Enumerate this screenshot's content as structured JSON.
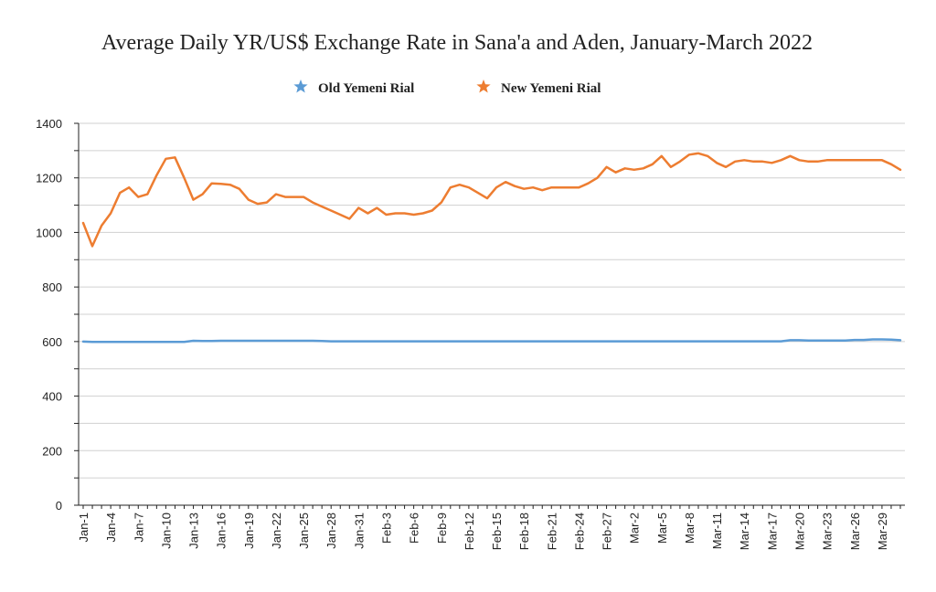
{
  "chart_data": {
    "type": "line",
    "title": "Average Daily YR/US$ Exchange Rate in Sana'a and Aden, January-March 2022",
    "xlabel": "",
    "ylabel": "",
    "ylim": [
      0,
      1400
    ],
    "yticks": [
      0,
      200,
      400,
      600,
      800,
      1000,
      1200,
      1400
    ],
    "grid": true,
    "legend_position": "top",
    "x": [
      "Jan-1",
      "Jan-2",
      "Jan-3",
      "Jan-4",
      "Jan-5",
      "Jan-6",
      "Jan-7",
      "Jan-8",
      "Jan-9",
      "Jan-10",
      "Jan-11",
      "Jan-12",
      "Jan-13",
      "Jan-14",
      "Jan-15",
      "Jan-16",
      "Jan-17",
      "Jan-18",
      "Jan-19",
      "Jan-20",
      "Jan-21",
      "Jan-22",
      "Jan-23",
      "Jan-24",
      "Jan-25",
      "Jan-26",
      "Jan-27",
      "Jan-28",
      "Jan-29",
      "Jan-30",
      "Jan-31",
      "Feb-1",
      "Feb-2",
      "Feb-3",
      "Feb-4",
      "Feb-5",
      "Feb-6",
      "Feb-7",
      "Feb-8",
      "Feb-9",
      "Feb-10",
      "Feb-11",
      "Feb-12",
      "Feb-13",
      "Feb-14",
      "Feb-15",
      "Feb-16",
      "Feb-17",
      "Feb-18",
      "Feb-19",
      "Feb-20",
      "Feb-21",
      "Feb-22",
      "Feb-23",
      "Feb-24",
      "Feb-25",
      "Feb-26",
      "Feb-27",
      "Feb-28",
      "Mar-1",
      "Mar-2",
      "Mar-3",
      "Mar-4",
      "Mar-5",
      "Mar-6",
      "Mar-7",
      "Mar-8",
      "Mar-9",
      "Mar-10",
      "Mar-11",
      "Mar-12",
      "Mar-13",
      "Mar-14",
      "Mar-15",
      "Mar-16",
      "Mar-17",
      "Mar-18",
      "Mar-19",
      "Mar-20",
      "Mar-21",
      "Mar-22",
      "Mar-23",
      "Mar-24",
      "Mar-25",
      "Mar-26",
      "Mar-27",
      "Mar-28",
      "Mar-29",
      "Mar-30",
      "Mar-31"
    ],
    "x_tick_labels": [
      "Jan-1",
      "Jan-4",
      "Jan-7",
      "Jan-10",
      "Jan-13",
      "Jan-16",
      "Jan-19",
      "Jan-22",
      "Jan-25",
      "Jan-28",
      "Jan-31",
      "Feb-3",
      "Feb-6",
      "Feb-9",
      "Feb-12",
      "Feb-15",
      "Feb-18",
      "Feb-21",
      "Feb-24",
      "Feb-27",
      "Mar-2",
      "Mar-5",
      "Mar-8",
      "Mar-11",
      "Mar-14",
      "Mar-17",
      "Mar-20",
      "Mar-23",
      "Mar-26",
      "Mar-29"
    ],
    "series": [
      {
        "name": "Old Yemeni Rial",
        "color": "#5b9bd5",
        "marker": "star",
        "values": [
          600,
          599,
          599,
          599,
          599,
          599,
          599,
          599,
          599,
          599,
          599,
          599,
          603,
          602,
          602,
          603,
          603,
          603,
          603,
          603,
          603,
          603,
          603,
          603,
          603,
          603,
          602,
          601,
          601,
          601,
          601,
          601,
          601,
          601,
          601,
          601,
          601,
          601,
          601,
          601,
          601,
          601,
          601,
          601,
          601,
          601,
          601,
          601,
          601,
          601,
          601,
          601,
          601,
          601,
          601,
          601,
          601,
          601,
          601,
          601,
          601,
          601,
          601,
          601,
          601,
          601,
          601,
          601,
          601,
          601,
          601,
          601,
          601,
          601,
          601,
          601,
          601,
          605,
          605,
          604,
          604,
          604,
          604,
          604,
          606,
          606,
          608,
          608,
          607,
          605
        ]
      },
      {
        "name": "New Yemeni Rial",
        "color": "#ed7d31",
        "marker": "star",
        "values": [
          1035,
          950,
          1025,
          1070,
          1145,
          1165,
          1130,
          1140,
          1210,
          1270,
          1275,
          1200,
          1120,
          1140,
          1180,
          1178,
          1175,
          1160,
          1120,
          1105,
          1110,
          1140,
          1130,
          1130,
          1130,
          1110,
          1095,
          1080,
          1065,
          1050,
          1090,
          1070,
          1090,
          1065,
          1070,
          1070,
          1065,
          1070,
          1080,
          1110,
          1165,
          1175,
          1165,
          1145,
          1125,
          1165,
          1185,
          1170,
          1160,
          1165,
          1155,
          1165,
          1165,
          1165,
          1165,
          1180,
          1200,
          1240,
          1220,
          1235,
          1230,
          1235,
          1250,
          1280,
          1240,
          1260,
          1285,
          1290,
          1280,
          1255,
          1240,
          1260,
          1265,
          1260,
          1260,
          1255,
          1265,
          1280,
          1265,
          1260,
          1260,
          1265,
          1265,
          1265,
          1265,
          1265,
          1265,
          1265,
          1250,
          1230
        ]
      }
    ]
  }
}
